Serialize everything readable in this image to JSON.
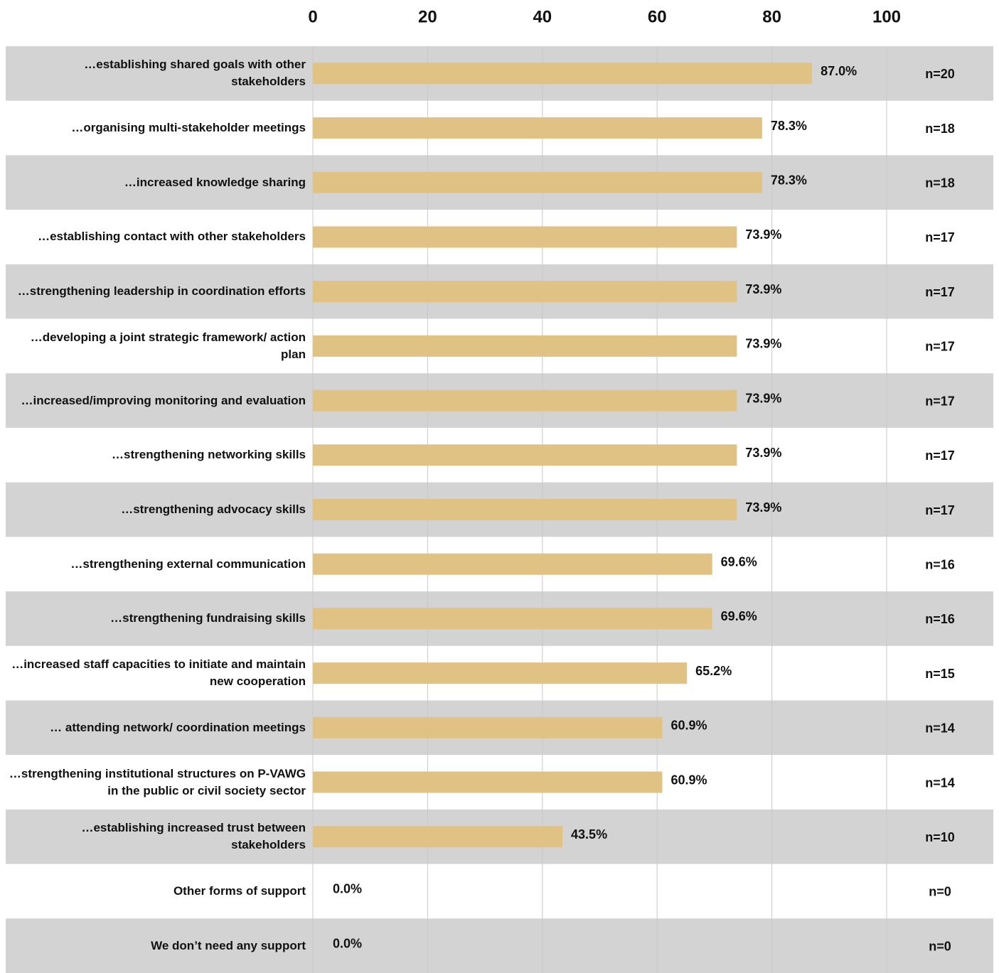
{
  "chart_data": {
    "type": "bar",
    "orientation": "horizontal",
    "categories": [
      "…establishing shared goals with other stakeholders",
      "…organising multi-stakeholder meetings",
      "…increased knowledge sharing",
      "…establishing contact with other stakeholders",
      "…strengthening leadership in coordination efforts",
      "…developing a joint strategic framework/ action plan",
      "…increased/improving monitoring and evaluation",
      "…strengthening networking skills",
      "…strengthening advocacy skills",
      "…strengthening external communication",
      "…strengthening fundraising skills",
      "…increased staff capacities to initiate and maintain new cooperation",
      "… attending network/ coordination meetings",
      "…strengthening institutional structures on P-VAWG in the public or civil society sector",
      "…establishing increased trust between stakeholders",
      "Other forms of support",
      "We don’t need any support"
    ],
    "values": [
      87.0,
      78.3,
      78.3,
      73.9,
      73.9,
      73.9,
      73.9,
      73.9,
      73.9,
      69.6,
      69.6,
      65.2,
      60.9,
      60.9,
      43.5,
      0.0,
      0.0
    ],
    "value_labels": [
      "87.0%",
      "78.3%",
      "78.3%",
      "73.9%",
      "73.9%",
      "73.9%",
      "73.9%",
      "73.9%",
      "73.9%",
      "69.6%",
      "69.6%",
      "65.2%",
      "60.9%",
      "60.9%",
      "43.5%",
      "0.0%",
      "0.0%"
    ],
    "sample_sizes": [
      "n=20",
      "n=18",
      "n=18",
      "n=17",
      "n=17",
      "n=17",
      "n=17",
      "n=17",
      "n=17",
      "n=16",
      "n=16",
      "n=15",
      "n=14",
      "n=14",
      "n=10",
      "n=0",
      "n=0"
    ],
    "color": "#e0c285",
    "xlim": [
      0,
      100
    ],
    "xticks": [
      0,
      20,
      40,
      60,
      80,
      100
    ],
    "grid": true
  }
}
